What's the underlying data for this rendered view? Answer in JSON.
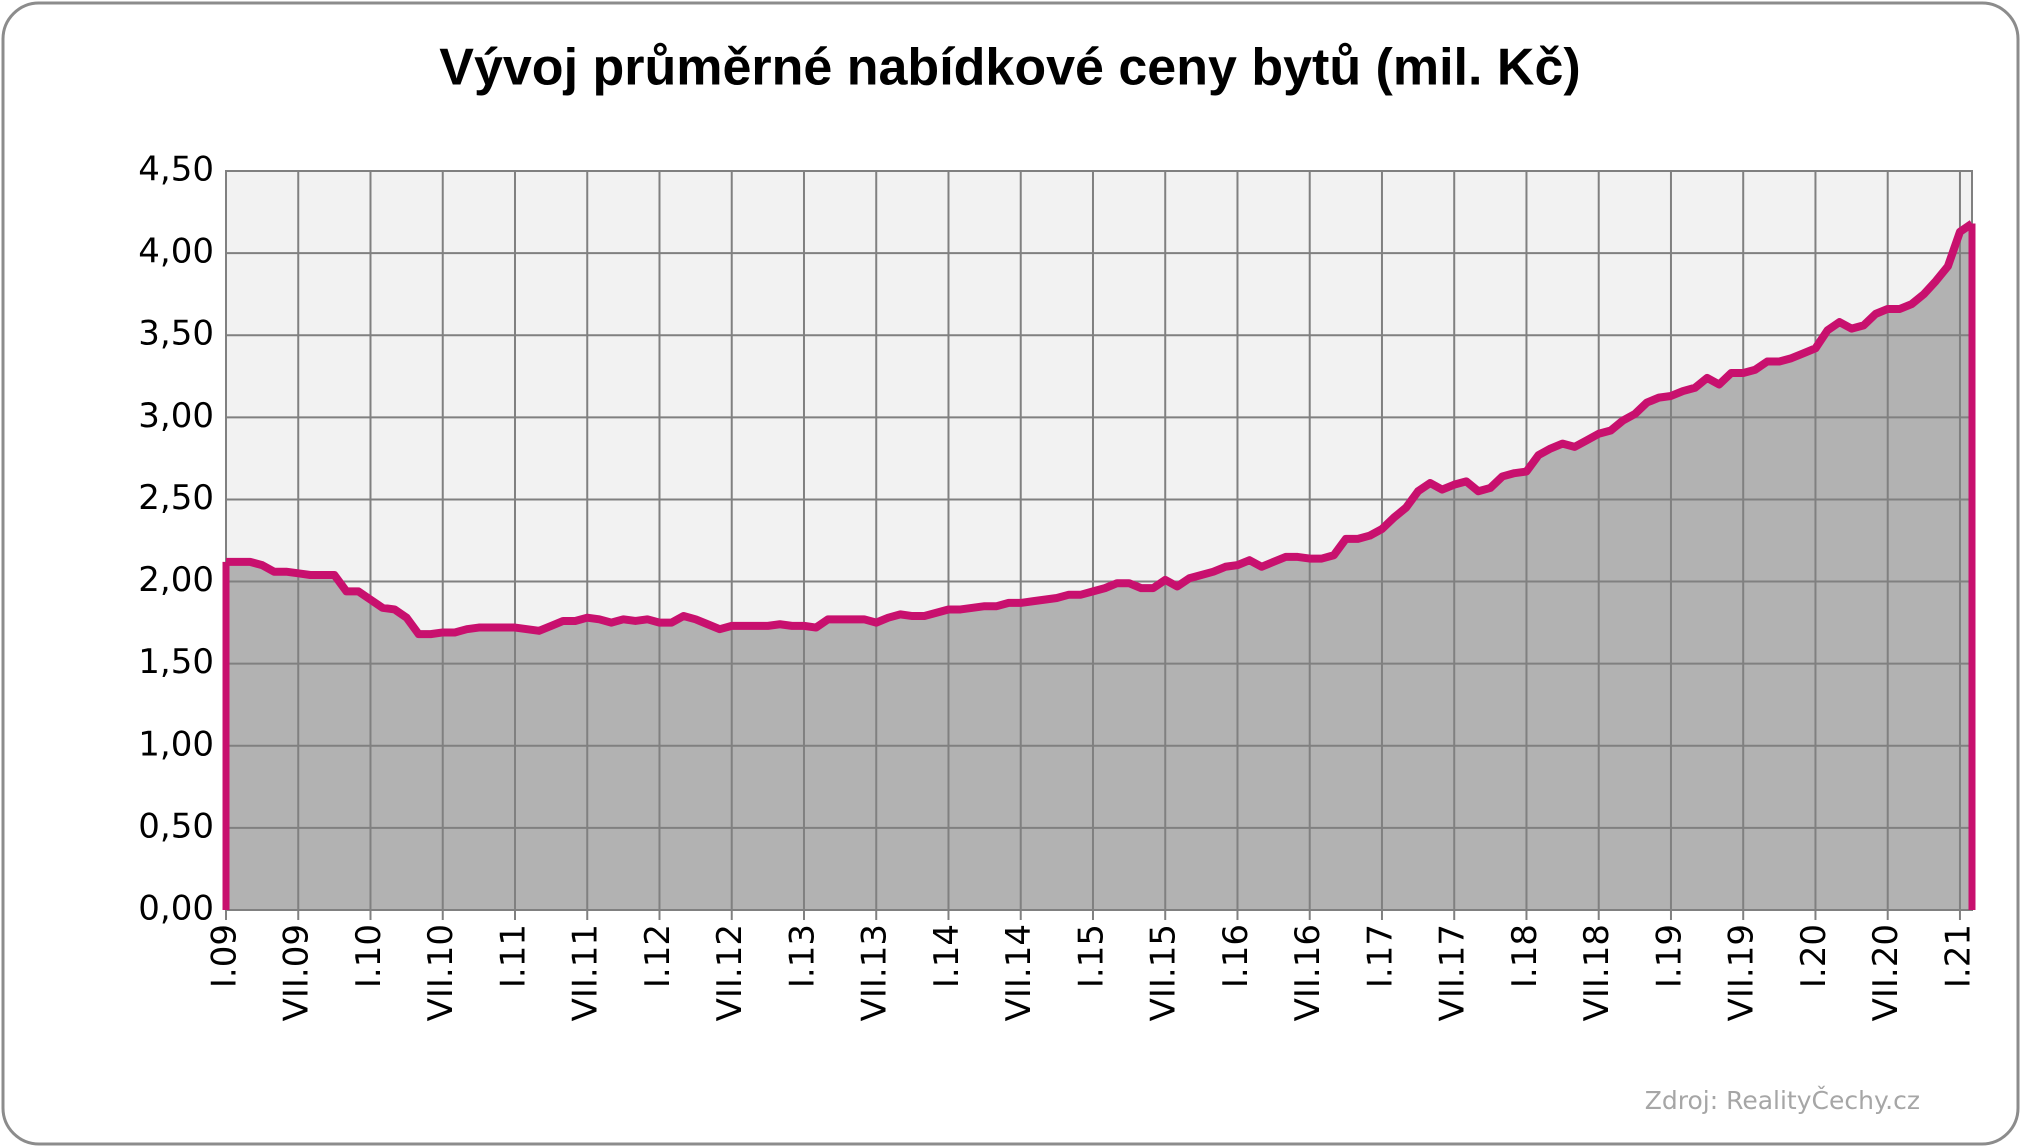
{
  "chart_data": {
    "type": "area",
    "title": "Vývoj průměrné nabídkové ceny bytů (mil. Kč)",
    "source": "Zdroj: RealityČechy.cz",
    "categories": [
      "I.09",
      null,
      null,
      null,
      null,
      null,
      "VII.09",
      null,
      null,
      null,
      null,
      null,
      "I.10",
      null,
      null,
      null,
      null,
      null,
      "VII.10",
      null,
      null,
      null,
      null,
      null,
      "I.11",
      null,
      null,
      null,
      null,
      null,
      "VII.11",
      null,
      null,
      null,
      null,
      null,
      "I.12",
      null,
      null,
      null,
      null,
      null,
      "VII.12",
      null,
      null,
      null,
      null,
      null,
      "I.13",
      null,
      null,
      null,
      null,
      null,
      "VII.13",
      null,
      null,
      null,
      null,
      null,
      "I.14",
      null,
      null,
      null,
      null,
      null,
      "VII.14",
      null,
      null,
      null,
      null,
      null,
      "I.15",
      null,
      null,
      null,
      null,
      null,
      "VII.15",
      null,
      null,
      null,
      null,
      null,
      "I.16",
      null,
      null,
      null,
      null,
      null,
      "VII.16",
      null,
      null,
      null,
      null,
      null,
      "I.17",
      null,
      null,
      null,
      null,
      null,
      "VII.17",
      null,
      null,
      null,
      null,
      null,
      "I.18",
      null,
      null,
      null,
      null,
      null,
      "VII.18",
      null,
      null,
      null,
      null,
      null,
      "I.19",
      null,
      null,
      null,
      null,
      null,
      "VII.19",
      null,
      null,
      null,
      null,
      null,
      "I.20",
      null,
      null,
      null,
      null,
      null,
      "VII.20",
      null,
      null,
      null,
      null,
      null,
      "I.21",
      null
    ],
    "values": [
      2.12,
      2.12,
      2.12,
      2.1,
      2.06,
      2.06,
      2.05,
      2.04,
      2.04,
      2.04,
      1.94,
      1.94,
      1.89,
      1.84,
      1.83,
      1.78,
      1.68,
      1.68,
      1.69,
      1.69,
      1.71,
      1.72,
      1.72,
      1.72,
      1.72,
      1.71,
      1.7,
      1.73,
      1.76,
      1.76,
      1.78,
      1.77,
      1.75,
      1.77,
      1.76,
      1.77,
      1.75,
      1.75,
      1.79,
      1.77,
      1.74,
      1.71,
      1.73,
      1.73,
      1.73,
      1.73,
      1.74,
      1.73,
      1.73,
      1.72,
      1.77,
      1.77,
      1.77,
      1.77,
      1.75,
      1.78,
      1.8,
      1.79,
      1.79,
      1.81,
      1.83,
      1.83,
      1.84,
      1.85,
      1.85,
      1.87,
      1.87,
      1.88,
      1.89,
      1.9,
      1.92,
      1.92,
      1.94,
      1.96,
      1.99,
      1.99,
      1.96,
      1.96,
      2.01,
      1.97,
      2.02,
      2.04,
      2.06,
      2.09,
      2.1,
      2.13,
      2.09,
      2.12,
      2.15,
      2.15,
      2.14,
      2.14,
      2.16,
      2.26,
      2.26,
      2.28,
      2.32,
      2.39,
      2.45,
      2.55,
      2.6,
      2.56,
      2.59,
      2.61,
      2.55,
      2.57,
      2.64,
      2.66,
      2.67,
      2.77,
      2.81,
      2.84,
      2.82,
      2.86,
      2.9,
      2.92,
      2.98,
      3.02,
      3.09,
      3.12,
      3.13,
      3.16,
      3.18,
      3.24,
      3.2,
      3.27,
      3.27,
      3.29,
      3.34,
      3.34,
      3.36,
      3.39,
      3.42,
      3.53,
      3.58,
      3.54,
      3.56,
      3.63,
      3.66,
      3.66,
      3.69,
      3.75,
      3.83,
      3.92,
      4.13,
      4.18
    ],
    "color": "#c8106e",
    "fill": "#b2b2b2",
    "ylim": [
      0,
      4.5
    ],
    "yticks": [
      {
        "value": 0,
        "label": "0,00"
      },
      {
        "value": 0.5,
        "label": "0,50"
      },
      {
        "value": 1,
        "label": "1,00"
      },
      {
        "value": 1.5,
        "label": "1,50"
      },
      {
        "value": 2,
        "label": "2,00"
      },
      {
        "value": 2.5,
        "label": "2,50"
      },
      {
        "value": 3,
        "label": "3,00"
      },
      {
        "value": 3.5,
        "label": "3,50"
      },
      {
        "value": 4,
        "label": "4,00"
      },
      {
        "value": 4.5,
        "label": "4,50"
      }
    ],
    "grid": true
  }
}
